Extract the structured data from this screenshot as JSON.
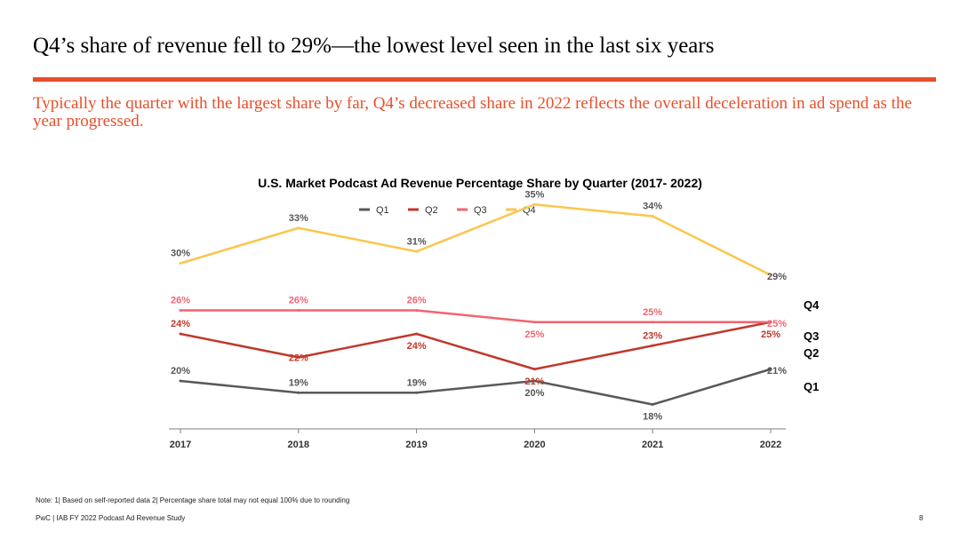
{
  "slide": {
    "title": "Q4’s share of revenue fell to 29%—the lowest level seen in the last six years",
    "subtitle": "Typically the quarter with the largest share by far, Q4’s decreased share in 2022 reflects the overall deceleration in ad spend as the year progressed.",
    "note": "Note: 1| Based on self-reported data 2| Percentage share total may not equal 100% due to rounding",
    "footer": "PwC |  IAB FY 2022 Podcast Ad Revenue Study",
    "page_number": "8"
  },
  "chart_data": {
    "type": "line",
    "title": "U.S. Market Podcast Ad Revenue Percentage Share by Quarter (2017- 2022)",
    "x": [
      "2017",
      "2018",
      "2019",
      "2020",
      "2021",
      "2022"
    ],
    "value_suffix": "%",
    "series": [
      {
        "name": "Q1",
        "color": "#595959",
        "values": [
          20,
          19,
          19,
          20,
          18,
          21
        ]
      },
      {
        "name": "Q2",
        "color": "#c0392b",
        "values": [
          24,
          22,
          24,
          21,
          23,
          25
        ]
      },
      {
        "name": "Q3",
        "color": "#f26470",
        "values": [
          26,
          26,
          26,
          25,
          25,
          25
        ]
      },
      {
        "name": "Q4",
        "color": "#fcc54e",
        "values": [
          30,
          33,
          31,
          35,
          34,
          29
        ]
      }
    ],
    "legend_position": "top-center",
    "end_labels": true,
    "y_axis_visible": false,
    "grid": false
  }
}
